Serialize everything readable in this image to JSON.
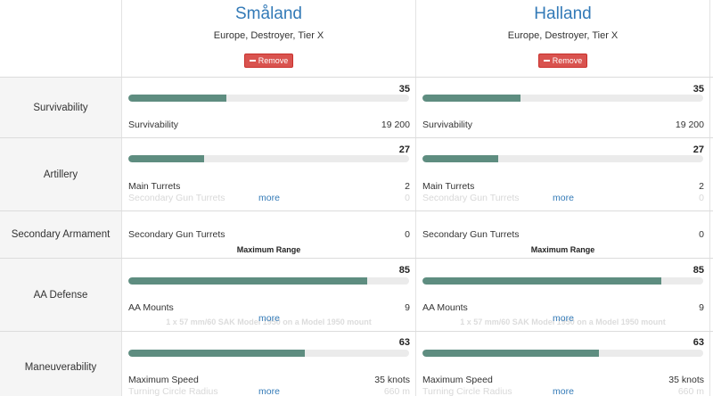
{
  "ships": [
    {
      "name": "Småland",
      "subtitle": "Europe, Destroyer, Tier X",
      "remove_label": "Remove",
      "survivability": {
        "score": "35",
        "fill": 0.35,
        "stat_name": "Survivability",
        "stat_value": "19 200"
      },
      "artillery": {
        "score": "27",
        "fill": 0.27,
        "main_turrets_label": "Main Turrets",
        "main_turrets_value": "2",
        "secondary_label": "Secondary Gun Turrets",
        "secondary_value": "0",
        "more": "more"
      },
      "secondary": {
        "label": "Secondary Gun Turrets",
        "value": "0",
        "range_label": "Maximum Range"
      },
      "aa": {
        "score": "85",
        "fill": 0.85,
        "mounts_label": "AA Mounts",
        "mounts_value": "9",
        "mount_desc": "1 x 57 mm/60 SAK Model 1950 on a Model 1950 mount",
        "more": "more"
      },
      "maneuverability": {
        "score": "63",
        "fill": 0.63,
        "speed_label": "Maximum Speed",
        "speed_value": "35 knots",
        "turn_label": "Turning Circle Radius",
        "turn_value": "660 m",
        "more": "more"
      }
    },
    {
      "name": "Halland",
      "subtitle": "Europe, Destroyer, Tier X",
      "remove_label": "Remove",
      "survivability": {
        "score": "35",
        "fill": 0.35,
        "stat_name": "Survivability",
        "stat_value": "19 200"
      },
      "artillery": {
        "score": "27",
        "fill": 0.27,
        "main_turrets_label": "Main Turrets",
        "main_turrets_value": "2",
        "secondary_label": "Secondary Gun Turrets",
        "secondary_value": "0",
        "more": "more"
      },
      "secondary": {
        "label": "Secondary Gun Turrets",
        "value": "0",
        "range_label": "Maximum Range"
      },
      "aa": {
        "score": "85",
        "fill": 0.85,
        "mounts_label": "AA Mounts",
        "mounts_value": "9",
        "mount_desc": "1 x 57 mm/60 SAK Model 1950 on a Model 1950 mount",
        "more": "more"
      },
      "maneuverability": {
        "score": "63",
        "fill": 0.63,
        "speed_label": "Maximum Speed",
        "speed_value": "35 knots",
        "turn_label": "Turning Circle Radius",
        "turn_value": "660 m",
        "more": "more"
      }
    }
  ],
  "categories": {
    "survivability": "Survivability",
    "artillery": "Artillery",
    "secondary": "Secondary Armament",
    "aa": "AA Defense",
    "maneuverability": "Maneuverability"
  },
  "colors": {
    "bar_fill": "#5e8d80",
    "bar_track": "#ebebeb",
    "remove_button": "#d9534f",
    "link": "#337ab7",
    "label_bg": "#f5f5f5"
  }
}
